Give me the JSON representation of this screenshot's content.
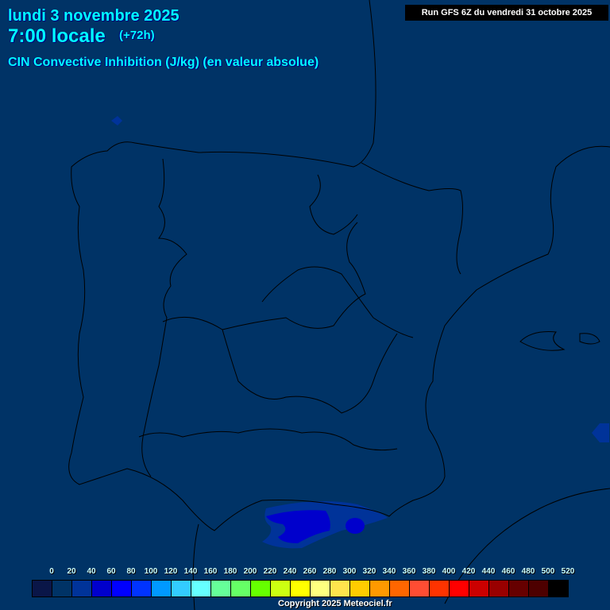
{
  "header": {
    "date": "lundi 3 novembre 2025",
    "time": "7:00 locale",
    "lead": "(+72h)",
    "parameter": "CIN Convective Inhibition (J/kg) (en valeur absolue)",
    "run": "Run GFS 6Z du vendredi 31 octobre 2025"
  },
  "map": {
    "region": "Péninsule Ibérique",
    "background_color": "#003366",
    "border_color": "#000000"
  },
  "legend": {
    "labels": [
      "0",
      "20",
      "40",
      "60",
      "80",
      "100",
      "120",
      "140",
      "160",
      "180",
      "200",
      "220",
      "240",
      "260",
      "280",
      "300",
      "320",
      "340",
      "360",
      "380",
      "400",
      "420",
      "440",
      "460",
      "480",
      "500",
      "520"
    ],
    "colors": [
      "#0a1648",
      "#003366",
      "#003399",
      "#0000cc",
      "#0000ff",
      "#0033ff",
      "#0099ff",
      "#33ccff",
      "#66ffff",
      "#66ff99",
      "#66ff66",
      "#66ff00",
      "#ccff11",
      "#ffff00",
      "#ffff80",
      "#ffe44d",
      "#ffcc00",
      "#ff9900",
      "#ff6600",
      "#ff4d33",
      "#ff3300",
      "#ff0000",
      "#cc0000",
      "#990000",
      "#660000",
      "#4d0000",
      "#000000"
    ]
  },
  "footer": {
    "copyright": "Copyright 2025 Meteociel.fr"
  }
}
